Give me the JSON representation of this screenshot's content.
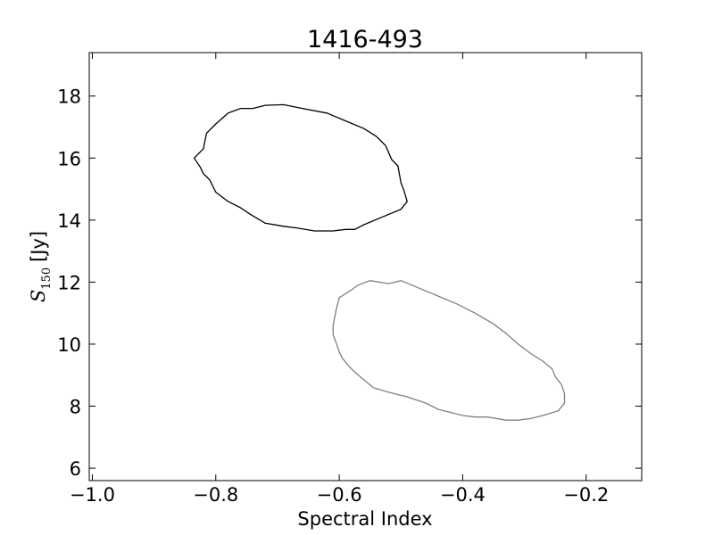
{
  "chart_data": {
    "type": "line",
    "title": "1416-493",
    "xlabel": "Spectral Index",
    "ylabel": {
      "symbol": "S",
      "subscript": "150",
      "unit": "[Jy]"
    },
    "xlim": [
      -1.005,
      -0.11
    ],
    "ylim": [
      5.6,
      19.4
    ],
    "x_ticks": [
      -1.0,
      -0.8,
      -0.6,
      -0.4,
      -0.2
    ],
    "x_tick_labels": [
      "−1.0",
      "−0.8",
      "−0.6",
      "−0.4",
      "−0.2"
    ],
    "y_ticks": [
      6,
      8,
      10,
      12,
      14,
      16,
      18
    ],
    "y_tick_labels": [
      "6",
      "8",
      "10",
      "12",
      "14",
      "16",
      "18"
    ],
    "grid": false,
    "series": [
      {
        "color": "#000000",
        "points": [
          [
            -0.835,
            16.0
          ],
          [
            -0.82,
            16.3
          ],
          [
            -0.815,
            16.8
          ],
          [
            -0.8,
            17.1
          ],
          [
            -0.78,
            17.45
          ],
          [
            -0.76,
            17.6
          ],
          [
            -0.74,
            17.6
          ],
          [
            -0.72,
            17.7
          ],
          [
            -0.69,
            17.72
          ],
          [
            -0.66,
            17.6
          ],
          [
            -0.62,
            17.45
          ],
          [
            -0.59,
            17.2
          ],
          [
            -0.56,
            16.95
          ],
          [
            -0.54,
            16.7
          ],
          [
            -0.525,
            16.4
          ],
          [
            -0.515,
            15.95
          ],
          [
            -0.505,
            15.75
          ],
          [
            -0.5,
            15.2
          ],
          [
            -0.495,
            14.95
          ],
          [
            -0.49,
            14.6
          ],
          [
            -0.5,
            14.35
          ],
          [
            -0.53,
            14.1
          ],
          [
            -0.56,
            13.85
          ],
          [
            -0.575,
            13.7
          ],
          [
            -0.59,
            13.7
          ],
          [
            -0.61,
            13.65
          ],
          [
            -0.64,
            13.65
          ],
          [
            -0.67,
            13.75
          ],
          [
            -0.69,
            13.8
          ],
          [
            -0.72,
            13.9
          ],
          [
            -0.745,
            14.2
          ],
          [
            -0.76,
            14.4
          ],
          [
            -0.78,
            14.6
          ],
          [
            -0.8,
            14.9
          ],
          [
            -0.805,
            15.1
          ],
          [
            -0.81,
            15.3
          ],
          [
            -0.82,
            15.5
          ],
          [
            -0.825,
            15.7
          ],
          [
            -0.835,
            16.0
          ]
        ]
      },
      {
        "color": "#808080",
        "points": [
          [
            -0.61,
            10.6
          ],
          [
            -0.605,
            11.1
          ],
          [
            -0.6,
            11.5
          ],
          [
            -0.58,
            11.75
          ],
          [
            -0.57,
            11.9
          ],
          [
            -0.55,
            12.05
          ],
          [
            -0.52,
            11.95
          ],
          [
            -0.5,
            12.05
          ],
          [
            -0.47,
            11.8
          ],
          [
            -0.44,
            11.55
          ],
          [
            -0.41,
            11.3
          ],
          [
            -0.38,
            11.0
          ],
          [
            -0.35,
            10.65
          ],
          [
            -0.33,
            10.35
          ],
          [
            -0.31,
            10.0
          ],
          [
            -0.29,
            9.7
          ],
          [
            -0.27,
            9.45
          ],
          [
            -0.255,
            9.2
          ],
          [
            -0.25,
            8.95
          ],
          [
            -0.24,
            8.7
          ],
          [
            -0.235,
            8.4
          ],
          [
            -0.235,
            8.1
          ],
          [
            -0.245,
            7.85
          ],
          [
            -0.27,
            7.7
          ],
          [
            -0.29,
            7.6
          ],
          [
            -0.31,
            7.55
          ],
          [
            -0.33,
            7.55
          ],
          [
            -0.36,
            7.65
          ],
          [
            -0.38,
            7.65
          ],
          [
            -0.4,
            7.7
          ],
          [
            -0.42,
            7.8
          ],
          [
            -0.44,
            7.9
          ],
          [
            -0.46,
            8.1
          ],
          [
            -0.49,
            8.3
          ],
          [
            -0.52,
            8.45
          ],
          [
            -0.545,
            8.6
          ],
          [
            -0.56,
            8.85
          ],
          [
            -0.575,
            9.1
          ],
          [
            -0.585,
            9.3
          ],
          [
            -0.595,
            9.55
          ],
          [
            -0.6,
            9.75
          ],
          [
            -0.605,
            10.05
          ],
          [
            -0.61,
            10.3
          ],
          [
            -0.61,
            10.6
          ]
        ]
      }
    ]
  }
}
